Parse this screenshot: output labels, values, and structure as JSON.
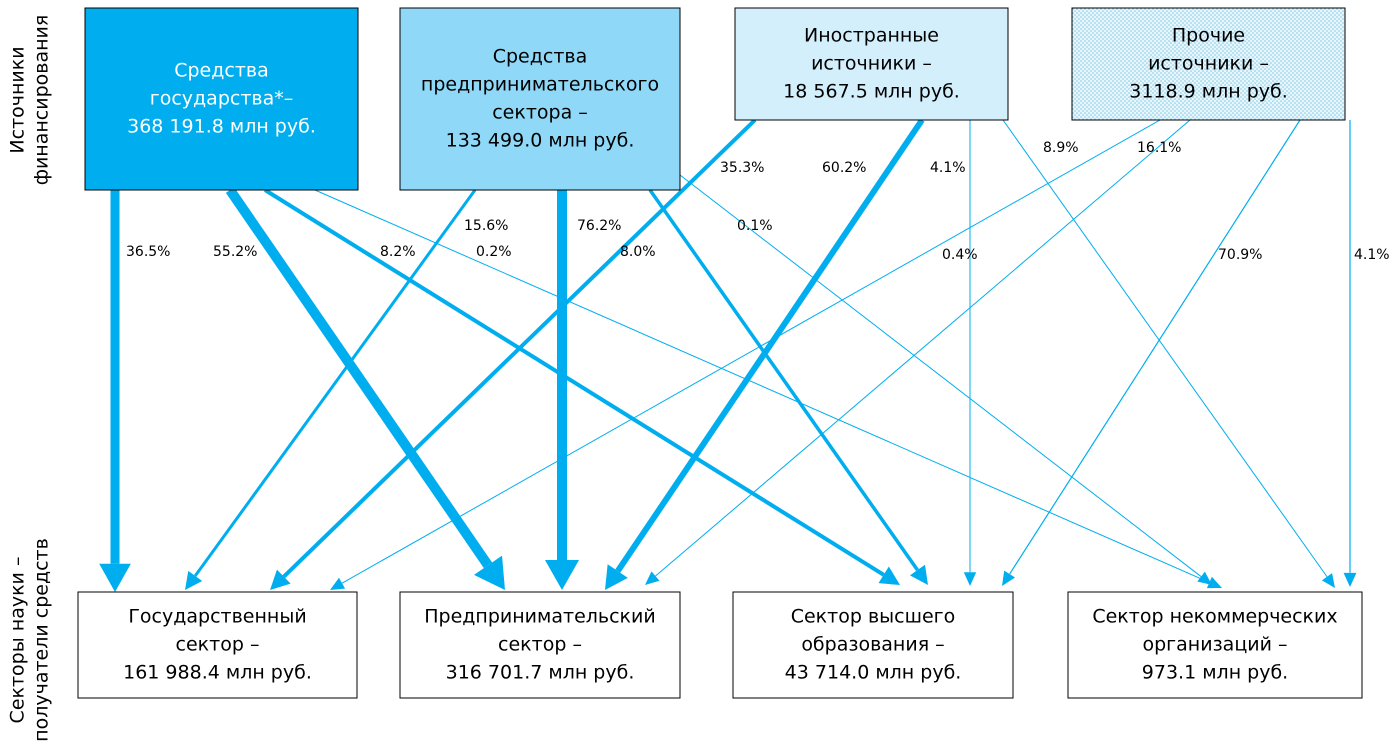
{
  "axis_labels": {
    "sources": [
      "Источники",
      "финансирования"
    ],
    "recipients": [
      "Секторы науки –",
      "получатели средств"
    ]
  },
  "sources": [
    {
      "lines": [
        "Средства",
        "государства*–",
        "368 191.8 млн руб."
      ]
    },
    {
      "lines": [
        "Средства",
        "предпринимательского",
        "сектора –",
        "133 499.0 млн руб."
      ]
    },
    {
      "lines": [
        "Иностранные",
        "источники –",
        "18 567.5 млн руб."
      ]
    },
    {
      "lines": [
        "Прочие",
        "источники –",
        "3118.9 млн руб."
      ]
    }
  ],
  "recipients": [
    {
      "lines": [
        "Государственный",
        "сектор –",
        "161 988.4 млн руб."
      ]
    },
    {
      "lines": [
        "Предпринимательский",
        "сектор –",
        "316 701.7 млн руб."
      ]
    },
    {
      "lines": [
        "Сектор высшего",
        "образования –",
        "43 714.0 млн руб."
      ]
    },
    {
      "lines": [
        "Сектор некоммерческих",
        "организаций –",
        "973.1 млн руб."
      ]
    }
  ],
  "flow_labels": [
    "36.5%",
    "55.2%",
    "8.2%",
    "0.2%",
    "15.6%",
    "76.2%",
    "8.0%",
    "0.1%",
    "35.3%",
    "60.2%",
    "4.1%",
    "8.9%",
    "16.1%",
    "0.4%",
    "70.9%",
    "4.1%"
  ]
}
